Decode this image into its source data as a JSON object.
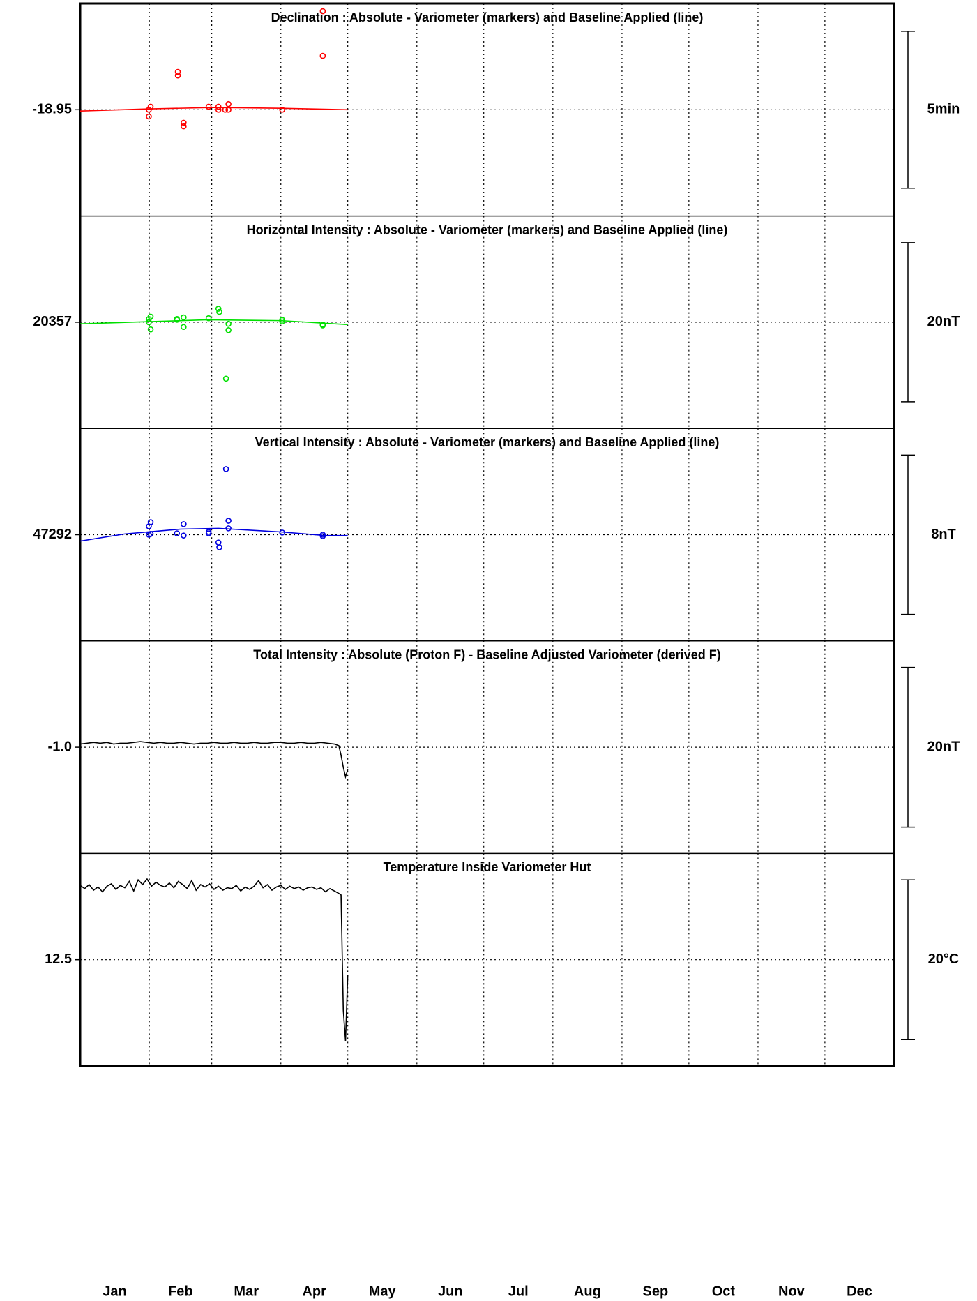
{
  "chart_data": [
    {
      "type": "combo",
      "title": "Declination : Absolute - Variometer (markers) and Baseline Applied (line)",
      "xlim": [
        0,
        365
      ],
      "xticks": [
        0,
        31,
        59,
        90,
        120,
        151,
        181,
        212,
        243,
        273,
        304,
        334,
        365
      ],
      "ylim": [
        -19.0064,
        -18.8936
      ],
      "yticks": [
        -18.95
      ],
      "grid": true,
      "scale_bar": {
        "value": 0.0833,
        "label": "5min"
      },
      "series": [
        {
          "type": "scatter",
          "color": "#ff0000",
          "x": [
            30.8,
            30.8,
            31.6,
            43.8,
            43.8,
            46.4,
            46.4,
            57.6,
            62,
            62,
            65,
            66.5,
            66.5,
            90.6,
            108.8,
            108.8
          ],
          "values": [
            -18.9536,
            -18.95,
            -18.9484,
            -18.9299,
            -18.9318,
            -18.9569,
            -18.9588,
            -18.9484,
            -18.9484,
            -18.95,
            -18.95,
            -18.947,
            -18.95,
            -18.95,
            -18.9214,
            -18.8977
          ]
        },
        {
          "type": "line",
          "color": "#ff0000",
          "x": [
            0,
            30,
            60,
            90,
            120
          ],
          "values": [
            -18.9507,
            -18.9496,
            -18.9488,
            -18.9492,
            -18.95
          ]
        }
      ]
    },
    {
      "type": "combo",
      "title": "Horizontal Intensity : Absolute - Variometer (markers) and Baseline Applied (line)",
      "xlim": [
        0,
        365
      ],
      "xticks": [
        0,
        31,
        59,
        90,
        120,
        151,
        181,
        212,
        243,
        273,
        304,
        334,
        365
      ],
      "ylim": [
        20343.64,
        20370.36
      ],
      "yticks": [
        20357
      ],
      "grid": true,
      "scale_bar": {
        "value": 20,
        "label": "20nT"
      },
      "series": [
        {
          "type": "scatter",
          "color": "#00e000",
          "x": [
            30.8,
            30.8,
            31.6,
            31.6,
            43.4,
            43.4,
            46.4,
            46.4,
            57.6,
            62,
            62.4,
            66.5,
            66.5,
            65.4,
            90.6,
            90.6,
            108.8,
            108.8
          ],
          "values": [
            20357.0,
            20357.4,
            20357.7,
            20356.1,
            20357.4,
            20357.3,
            20357.6,
            20356.4,
            20357.5,
            20358.7,
            20358.3,
            20356.8,
            20356.0,
            20349.9,
            20357.3,
            20357.1,
            20356.7,
            20356.6
          ]
        },
        {
          "type": "line",
          "color": "#00e000",
          "x": [
            0,
            57,
            90,
            120
          ],
          "values": [
            20356.8,
            20357.3,
            20357.2,
            20356.7
          ]
        }
      ]
    },
    {
      "type": "combo",
      "title": "Vertical Intensity : Absolute - Variometer (markers) and Baseline Applied (line)",
      "xlim": [
        0,
        365
      ],
      "xticks": [
        0,
        31,
        59,
        90,
        120,
        151,
        181,
        212,
        243,
        273,
        304,
        334,
        365
      ],
      "ylim": [
        47286.66,
        47297.34
      ],
      "yticks": [
        47292
      ],
      "grid": true,
      "scale_bar": {
        "value": 8,
        "label": "8nT"
      },
      "series": [
        {
          "type": "scatter",
          "color": "#0000e0",
          "x": [
            30.8,
            30.8,
            31.6,
            31.6,
            43.4,
            46.4,
            46.4,
            57.6,
            57.6,
            62,
            62.4,
            65.4,
            66.5,
            66.5,
            90.6,
            108.8,
            108.8
          ],
          "values": [
            47292.0,
            47292.42,
            47292.63,
            47292.04,
            47292.07,
            47292.53,
            47291.96,
            47292.14,
            47292.07,
            47291.61,
            47291.37,
            47295.3,
            47292.7,
            47292.32,
            47292.11,
            47292.0,
            47291.93
          ]
        },
        {
          "type": "line",
          "color": "#0000e0",
          "x": [
            0,
            20,
            45,
            62,
            90,
            110,
            120
          ],
          "values": [
            47291.68,
            47292.04,
            47292.28,
            47292.32,
            47292.14,
            47291.96,
            47291.96
          ]
        }
      ]
    },
    {
      "type": "line",
      "title": "Total Intensity : Absolute (Proton F) - Baseline Adjusted Variometer (derived F)",
      "xlim": [
        0,
        365
      ],
      "xticks": [
        0,
        31,
        59,
        90,
        120,
        151,
        181,
        212,
        243,
        273,
        304,
        334,
        365
      ],
      "ylim": [
        -14.3,
        12.3
      ],
      "yticks": [
        {
          "value": -1,
          "label": "-1.0"
        }
      ],
      "grid": true,
      "scale_bar": {
        "value": 20,
        "label": "20nT"
      },
      "series": [
        {
          "type": "line",
          "color": "#000000",
          "x": [
            0,
            3,
            6,
            9,
            12,
            15,
            18,
            21,
            24,
            27,
            30,
            33,
            36,
            39,
            42,
            45,
            48,
            51,
            54,
            57,
            60,
            63,
            66,
            69,
            72,
            75,
            78,
            81,
            84,
            87,
            90,
            93,
            96,
            99,
            102,
            105,
            108,
            111,
            114,
            116,
            117,
            118,
            119,
            120
          ],
          "values": [
            -0.6,
            -0.5,
            -0.4,
            -0.5,
            -0.4,
            -0.6,
            -0.5,
            -0.5,
            -0.4,
            -0.3,
            -0.4,
            -0.5,
            -0.4,
            -0.5,
            -0.5,
            -0.4,
            -0.5,
            -0.6,
            -0.5,
            -0.5,
            -0.4,
            -0.5,
            -0.5,
            -0.4,
            -0.5,
            -0.5,
            -0.4,
            -0.5,
            -0.5,
            -0.4,
            -0.4,
            -0.5,
            -0.5,
            -0.4,
            -0.5,
            -0.5,
            -0.4,
            -0.5,
            -0.6,
            -0.8,
            -2.0,
            -3.5,
            -4.7,
            -3.8
          ]
        }
      ]
    },
    {
      "type": "line",
      "title": "Temperature Inside Variometer Hut",
      "xlim": [
        0,
        365
      ],
      "xticks": [
        0,
        31,
        59,
        90,
        120,
        151,
        181,
        212,
        243,
        273,
        304,
        334,
        365
      ],
      "ylim": [
        -0.8,
        25.8
      ],
      "yticks": [
        12.5
      ],
      "grid": true,
      "scale_bar": {
        "value": 20,
        "label": "20°C"
      },
      "categories": [
        "Jan",
        "Feb",
        "Mar",
        "Apr",
        "May",
        "Jun",
        "Jul",
        "Aug",
        "Sep",
        "Oct",
        "Nov",
        "Dec"
      ],
      "series": [
        {
          "type": "line",
          "color": "#000000",
          "x": [
            0,
            2,
            4,
            6,
            8,
            10,
            12,
            14,
            16,
            18,
            20,
            22,
            24,
            26,
            28,
            30,
            32,
            34,
            36,
            38,
            40,
            42,
            44,
            46,
            48,
            50,
            52,
            54,
            56,
            58,
            60,
            62,
            64,
            66,
            68,
            70,
            72,
            74,
            76,
            78,
            80,
            82,
            84,
            86,
            88,
            90,
            92,
            94,
            96,
            98,
            100,
            102,
            104,
            106,
            108,
            110,
            112,
            114,
            116,
            117,
            118,
            119,
            120
          ],
          "values": [
            21.8,
            21.4,
            21.9,
            21.2,
            21.6,
            21.0,
            21.7,
            22.0,
            21.3,
            21.8,
            21.5,
            22.3,
            21.1,
            22.5,
            21.9,
            22.6,
            21.7,
            22.2,
            21.8,
            21.6,
            22.1,
            21.5,
            22.3,
            21.9,
            21.4,
            22.4,
            21.2,
            21.9,
            21.6,
            22.0,
            21.3,
            21.7,
            21.2,
            21.5,
            21.4,
            21.8,
            21.1,
            21.6,
            21.3,
            21.7,
            22.4,
            21.5,
            21.9,
            21.2,
            21.6,
            21.8,
            21.3,
            21.7,
            21.4,
            21.6,
            21.2,
            21.5,
            21.6,
            21.3,
            21.5,
            21.0,
            21.4,
            21.1,
            20.8,
            20.6,
            6.2,
            2.3,
            10.6
          ]
        }
      ]
    }
  ]
}
